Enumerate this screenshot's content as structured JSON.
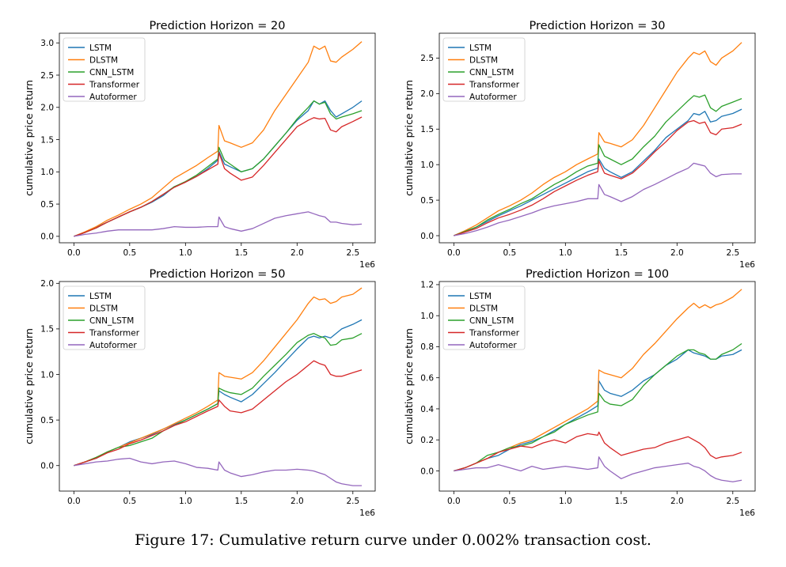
{
  "caption": "Figure 17: Cumulative return curve under 0.002% transaction cost.",
  "colors": {
    "LSTM": "#1f77b4",
    "DLSTM": "#ff7f0e",
    "CNN_LSTM": "#2ca02c",
    "Transformer": "#d62728",
    "Autoformer": "#9467bd"
  },
  "chart_data": [
    {
      "type": "line",
      "title": "Prediction Horizon = 20",
      "xlabel": "",
      "ylabel": "cumulative price return",
      "x_offset_label": "1e6",
      "xlim": [
        -0.13,
        2.7
      ],
      "ylim": [
        -0.1,
        3.15
      ],
      "xticks": [
        0.0,
        0.5,
        1.0,
        1.5,
        2.0,
        2.5
      ],
      "yticks": [
        0.0,
        0.5,
        1.0,
        1.5,
        2.0,
        2.5,
        3.0
      ],
      "ytick_labels": [
        "0.0",
        "0.5",
        "1.0",
        "1.5",
        "2.0",
        "2.5",
        "3.0"
      ],
      "legend": "top-left",
      "grid": false,
      "x": [
        0,
        0.1,
        0.2,
        0.3,
        0.4,
        0.5,
        0.6,
        0.7,
        0.8,
        0.9,
        1.0,
        1.1,
        1.2,
        1.29,
        1.3,
        1.35,
        1.4,
        1.5,
        1.6,
        1.7,
        1.8,
        1.9,
        2.0,
        2.1,
        2.15,
        2.2,
        2.25,
        2.3,
        2.35,
        2.4,
        2.5,
        2.58
      ],
      "series": [
        {
          "name": "LSTM",
          "values": [
            0,
            0.06,
            0.14,
            0.22,
            0.3,
            0.38,
            0.45,
            0.53,
            0.63,
            0.77,
            0.84,
            0.93,
            1.05,
            1.18,
            1.32,
            1.12,
            1.08,
            1.0,
            1.05,
            1.2,
            1.4,
            1.6,
            1.8,
            1.95,
            2.1,
            2.05,
            2.1,
            1.95,
            1.85,
            1.9,
            2.0,
            2.1
          ]
        },
        {
          "name": "DLSTM",
          "values": [
            0,
            0.07,
            0.15,
            0.25,
            0.33,
            0.42,
            0.5,
            0.6,
            0.75,
            0.9,
            1.0,
            1.1,
            1.22,
            1.32,
            1.72,
            1.48,
            1.45,
            1.38,
            1.45,
            1.65,
            1.95,
            2.2,
            2.45,
            2.7,
            2.95,
            2.9,
            2.95,
            2.72,
            2.7,
            2.78,
            2.9,
            3.02
          ]
        },
        {
          "name": "CNN_LSTM",
          "values": [
            0,
            0.06,
            0.13,
            0.22,
            0.3,
            0.38,
            0.45,
            0.54,
            0.65,
            0.77,
            0.85,
            0.95,
            1.08,
            1.2,
            1.38,
            1.18,
            1.12,
            1.0,
            1.05,
            1.2,
            1.4,
            1.6,
            1.82,
            2.0,
            2.1,
            2.05,
            2.08,
            1.9,
            1.82,
            1.85,
            1.9,
            1.95
          ]
        },
        {
          "name": "Transformer",
          "values": [
            0,
            0.06,
            0.13,
            0.22,
            0.3,
            0.38,
            0.45,
            0.54,
            0.65,
            0.76,
            0.84,
            0.93,
            1.03,
            1.12,
            1.3,
            1.05,
            0.98,
            0.87,
            0.92,
            1.1,
            1.3,
            1.5,
            1.7,
            1.8,
            1.84,
            1.82,
            1.83,
            1.65,
            1.62,
            1.7,
            1.78,
            1.85
          ]
        },
        {
          "name": "Autoformer",
          "values": [
            0,
            0.03,
            0.05,
            0.08,
            0.1,
            0.1,
            0.1,
            0.1,
            0.12,
            0.15,
            0.14,
            0.14,
            0.15,
            0.15,
            0.3,
            0.15,
            0.12,
            0.08,
            0.12,
            0.2,
            0.28,
            0.32,
            0.35,
            0.38,
            0.35,
            0.32,
            0.3,
            0.22,
            0.22,
            0.2,
            0.18,
            0.19
          ]
        }
      ]
    },
    {
      "type": "line",
      "title": "Prediction Horizon = 30",
      "xlabel": "",
      "ylabel": "cumulative price return",
      "x_offset_label": "1e6",
      "xlim": [
        -0.13,
        2.7
      ],
      "ylim": [
        -0.1,
        2.85
      ],
      "xticks": [
        0.0,
        0.5,
        1.0,
        1.5,
        2.0,
        2.5
      ],
      "yticks": [
        0.0,
        0.5,
        1.0,
        1.5,
        2.0,
        2.5
      ],
      "ytick_labels": [
        "0.0",
        "0.5",
        "1.0",
        "1.5",
        "2.0",
        "2.5"
      ],
      "legend": "top-left",
      "grid": false,
      "x": [
        0,
        0.1,
        0.2,
        0.3,
        0.4,
        0.5,
        0.6,
        0.7,
        0.8,
        0.9,
        1.0,
        1.1,
        1.2,
        1.29,
        1.3,
        1.35,
        1.4,
        1.5,
        1.6,
        1.7,
        1.8,
        1.9,
        2.0,
        2.1,
        2.15,
        2.2,
        2.25,
        2.3,
        2.35,
        2.4,
        2.5,
        2.58
      ],
      "series": [
        {
          "name": "LSTM",
          "values": [
            0,
            0.06,
            0.12,
            0.2,
            0.28,
            0.35,
            0.42,
            0.5,
            0.58,
            0.66,
            0.74,
            0.82,
            0.9,
            0.95,
            1.08,
            0.95,
            0.9,
            0.82,
            0.9,
            1.05,
            1.2,
            1.38,
            1.5,
            1.62,
            1.72,
            1.7,
            1.75,
            1.6,
            1.62,
            1.68,
            1.72,
            1.78
          ]
        },
        {
          "name": "DLSTM",
          "values": [
            0,
            0.07,
            0.15,
            0.25,
            0.35,
            0.42,
            0.5,
            0.6,
            0.72,
            0.82,
            0.9,
            1.0,
            1.08,
            1.15,
            1.45,
            1.32,
            1.3,
            1.25,
            1.35,
            1.55,
            1.8,
            2.05,
            2.3,
            2.5,
            2.58,
            2.55,
            2.6,
            2.45,
            2.4,
            2.5,
            2.6,
            2.72
          ]
        },
        {
          "name": "CNN_LSTM",
          "values": [
            0,
            0.06,
            0.12,
            0.22,
            0.3,
            0.37,
            0.45,
            0.52,
            0.62,
            0.72,
            0.8,
            0.9,
            0.98,
            1.02,
            1.28,
            1.12,
            1.08,
            1.0,
            1.08,
            1.25,
            1.4,
            1.6,
            1.75,
            1.9,
            1.97,
            1.95,
            1.98,
            1.8,
            1.75,
            1.82,
            1.88,
            1.93
          ]
        },
        {
          "name": "Transformer",
          "values": [
            0,
            0.05,
            0.1,
            0.18,
            0.25,
            0.3,
            0.36,
            0.43,
            0.52,
            0.62,
            0.7,
            0.78,
            0.85,
            0.9,
            1.05,
            0.88,
            0.85,
            0.8,
            0.88,
            1.02,
            1.18,
            1.32,
            1.48,
            1.6,
            1.62,
            1.58,
            1.6,
            1.45,
            1.42,
            1.5,
            1.52,
            1.57
          ]
        },
        {
          "name": "Autoformer",
          "values": [
            0,
            0.03,
            0.07,
            0.12,
            0.18,
            0.22,
            0.27,
            0.32,
            0.38,
            0.42,
            0.45,
            0.48,
            0.52,
            0.52,
            0.72,
            0.58,
            0.55,
            0.48,
            0.55,
            0.65,
            0.72,
            0.8,
            0.88,
            0.95,
            1.02,
            1.0,
            0.98,
            0.88,
            0.83,
            0.86,
            0.87,
            0.87
          ]
        }
      ]
    },
    {
      "type": "line",
      "title": "Prediction Horizon = 50",
      "xlabel": "",
      "ylabel": "cumulative price return",
      "x_offset_label": "1e6",
      "xlim": [
        -0.13,
        2.7
      ],
      "ylim": [
        -0.28,
        2.02
      ],
      "xticks": [
        0.0,
        0.5,
        1.0,
        1.5,
        2.0,
        2.5
      ],
      "yticks": [
        0.0,
        0.5,
        1.0,
        1.5,
        2.0
      ],
      "ytick_labels": [
        "0.0",
        "0.5",
        "1.0",
        "1.5",
        "2.0"
      ],
      "legend": "top-left",
      "grid": false,
      "x": [
        0,
        0.1,
        0.2,
        0.3,
        0.4,
        0.5,
        0.6,
        0.7,
        0.8,
        0.9,
        1.0,
        1.1,
        1.2,
        1.29,
        1.3,
        1.35,
        1.4,
        1.5,
        1.6,
        1.7,
        1.8,
        1.9,
        2.0,
        2.1,
        2.15,
        2.2,
        2.25,
        2.3,
        2.35,
        2.4,
        2.5,
        2.58
      ],
      "series": [
        {
          "name": "LSTM",
          "values": [
            0,
            0.04,
            0.08,
            0.15,
            0.2,
            0.26,
            0.3,
            0.34,
            0.4,
            0.45,
            0.5,
            0.56,
            0.62,
            0.68,
            0.82,
            0.78,
            0.75,
            0.7,
            0.78,
            0.9,
            1.02,
            1.15,
            1.28,
            1.4,
            1.42,
            1.4,
            1.42,
            1.4,
            1.45,
            1.5,
            1.55,
            1.6
          ]
        },
        {
          "name": "DLSTM",
          "values": [
            0,
            0.04,
            0.09,
            0.15,
            0.2,
            0.25,
            0.3,
            0.35,
            0.4,
            0.46,
            0.52,
            0.58,
            0.65,
            0.72,
            1.02,
            0.98,
            0.97,
            0.95,
            1.02,
            1.15,
            1.3,
            1.45,
            1.6,
            1.78,
            1.85,
            1.82,
            1.83,
            1.78,
            1.8,
            1.85,
            1.88,
            1.95
          ]
        },
        {
          "name": "CNN_LSTM",
          "values": [
            0,
            0.04,
            0.09,
            0.15,
            0.2,
            0.22,
            0.26,
            0.3,
            0.38,
            0.44,
            0.5,
            0.56,
            0.62,
            0.68,
            0.85,
            0.82,
            0.8,
            0.78,
            0.85,
            0.98,
            1.1,
            1.22,
            1.35,
            1.43,
            1.45,
            1.42,
            1.4,
            1.32,
            1.33,
            1.38,
            1.4,
            1.45
          ]
        },
        {
          "name": "Transformer",
          "values": [
            0,
            0.04,
            0.08,
            0.14,
            0.18,
            0.24,
            0.28,
            0.33,
            0.38,
            0.44,
            0.48,
            0.54,
            0.6,
            0.65,
            0.72,
            0.65,
            0.6,
            0.58,
            0.62,
            0.72,
            0.82,
            0.92,
            1.0,
            1.1,
            1.15,
            1.12,
            1.1,
            1.0,
            0.98,
            0.98,
            1.02,
            1.05
          ]
        },
        {
          "name": "Autoformer",
          "values": [
            0,
            0.02,
            0.04,
            0.05,
            0.07,
            0.08,
            0.04,
            0.02,
            0.04,
            0.05,
            0.02,
            -0.02,
            -0.03,
            -0.05,
            0.04,
            -0.05,
            -0.08,
            -0.12,
            -0.1,
            -0.07,
            -0.05,
            -0.05,
            -0.04,
            -0.05,
            -0.06,
            -0.08,
            -0.1,
            -0.14,
            -0.18,
            -0.2,
            -0.22,
            -0.22
          ]
        }
      ]
    },
    {
      "type": "line",
      "title": "Prediction Horizon = 100",
      "xlabel": "",
      "ylabel": "cumulative price return",
      "x_offset_label": "1e6",
      "xlim": [
        -0.13,
        2.7
      ],
      "ylim": [
        -0.13,
        1.22
      ],
      "xticks": [
        0.0,
        0.5,
        1.0,
        1.5,
        2.0,
        2.5
      ],
      "yticks": [
        0.0,
        0.2,
        0.4,
        0.6,
        0.8,
        1.0,
        1.2
      ],
      "ytick_labels": [
        "0.0",
        "0.2",
        "0.4",
        "0.6",
        "0.8",
        "1.0",
        "1.2"
      ],
      "legend": "top-left",
      "grid": false,
      "x": [
        0,
        0.1,
        0.2,
        0.3,
        0.4,
        0.5,
        0.6,
        0.7,
        0.8,
        0.9,
        1.0,
        1.1,
        1.2,
        1.29,
        1.3,
        1.35,
        1.4,
        1.5,
        1.6,
        1.7,
        1.8,
        1.9,
        2.0,
        2.1,
        2.15,
        2.2,
        2.25,
        2.3,
        2.35,
        2.4,
        2.5,
        2.58
      ],
      "series": [
        {
          "name": "LSTM",
          "values": [
            0,
            0.02,
            0.05,
            0.08,
            0.1,
            0.14,
            0.17,
            0.19,
            0.22,
            0.26,
            0.3,
            0.34,
            0.38,
            0.42,
            0.58,
            0.52,
            0.5,
            0.48,
            0.52,
            0.58,
            0.62,
            0.68,
            0.72,
            0.78,
            0.76,
            0.75,
            0.74,
            0.72,
            0.72,
            0.74,
            0.75,
            0.78
          ]
        },
        {
          "name": "DLSTM",
          "values": [
            0,
            0.02,
            0.05,
            0.08,
            0.12,
            0.15,
            0.18,
            0.2,
            0.24,
            0.28,
            0.32,
            0.36,
            0.4,
            0.45,
            0.65,
            0.63,
            0.62,
            0.6,
            0.66,
            0.75,
            0.82,
            0.9,
            0.98,
            1.05,
            1.08,
            1.05,
            1.07,
            1.05,
            1.07,
            1.08,
            1.12,
            1.17
          ]
        },
        {
          "name": "CNN_LSTM",
          "values": [
            0,
            0.02,
            0.05,
            0.1,
            0.12,
            0.15,
            0.16,
            0.18,
            0.22,
            0.25,
            0.3,
            0.33,
            0.36,
            0.38,
            0.5,
            0.45,
            0.43,
            0.42,
            0.46,
            0.55,
            0.62,
            0.68,
            0.74,
            0.78,
            0.78,
            0.76,
            0.75,
            0.72,
            0.72,
            0.75,
            0.78,
            0.82
          ]
        },
        {
          "name": "Transformer",
          "values": [
            0,
            0.02,
            0.05,
            0.08,
            0.12,
            0.14,
            0.16,
            0.15,
            0.18,
            0.2,
            0.18,
            0.22,
            0.24,
            0.23,
            0.25,
            0.18,
            0.15,
            0.1,
            0.12,
            0.14,
            0.15,
            0.18,
            0.2,
            0.22,
            0.2,
            0.18,
            0.15,
            0.1,
            0.08,
            0.09,
            0.1,
            0.12
          ]
        },
        {
          "name": "Autoformer",
          "values": [
            0,
            0.01,
            0.02,
            0.02,
            0.04,
            0.02,
            0.0,
            0.03,
            0.01,
            0.02,
            0.03,
            0.02,
            0.01,
            0.02,
            0.09,
            0.03,
            0.0,
            -0.05,
            -0.02,
            0.0,
            0.02,
            0.03,
            0.04,
            0.05,
            0.03,
            0.02,
            0.0,
            -0.03,
            -0.05,
            -0.06,
            -0.07,
            -0.06
          ]
        }
      ]
    }
  ]
}
